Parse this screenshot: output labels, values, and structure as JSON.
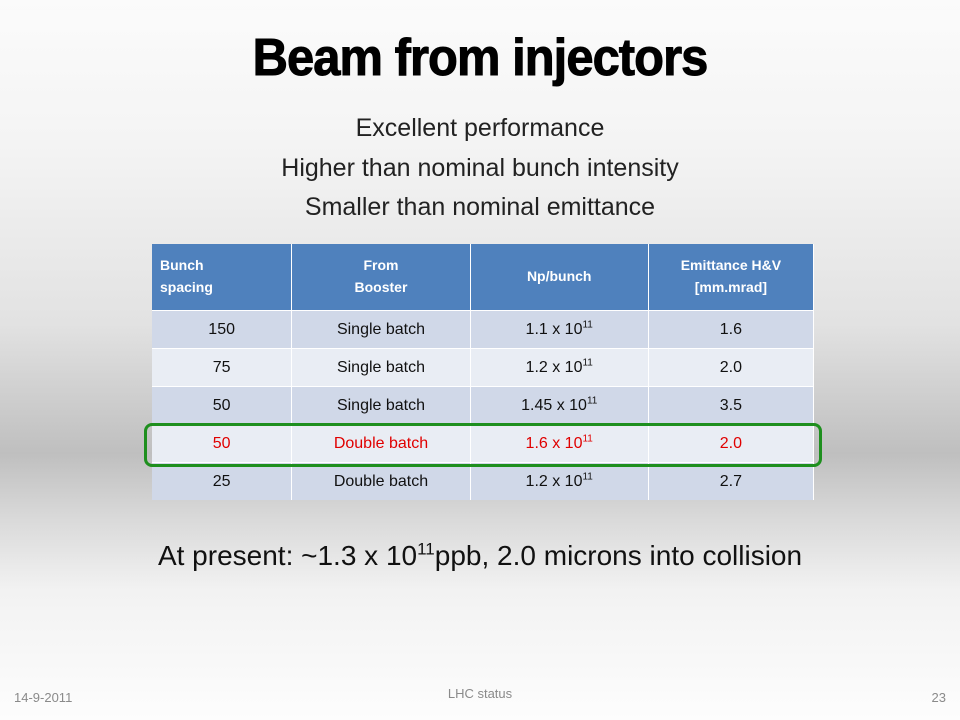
{
  "title": "Beam from injectors",
  "subtitles": [
    "Excellent performance",
    "Higher than nominal bunch intensity",
    "Smaller than nominal emittance"
  ],
  "table": {
    "headers": [
      {
        "line1": "Bunch",
        "line2": "spacing"
      },
      {
        "line1": "From",
        "line2": "Booster"
      },
      {
        "line1": "Np/bunch",
        "line2": ""
      },
      {
        "line1": "Emittance H&V",
        "line2": "[mm.mrad]"
      }
    ],
    "rows": [
      {
        "spacing": "150",
        "booster": "Single batch",
        "np_base": "1.1 x 10",
        "np_exp": "11",
        "emittance": "1.6",
        "highlight": false
      },
      {
        "spacing": "75",
        "booster": "Single batch",
        "np_base": "1.2 x 10",
        "np_exp": "11",
        "emittance": "2.0",
        "highlight": false
      },
      {
        "spacing": "50",
        "booster": "Single batch",
        "np_base": "1.45 x 10",
        "np_exp": "11",
        "emittance": "3.5",
        "highlight": false
      },
      {
        "spacing": "50",
        "booster": "Double batch",
        "np_base": "1.6 x 10",
        "np_exp": "11",
        "emittance": "2.0",
        "highlight": true
      },
      {
        "spacing": "25",
        "booster": "Double batch",
        "np_base": "1.2 x 10",
        "np_exp": "11",
        "emittance": "2.7",
        "highlight": false
      }
    ]
  },
  "summary": {
    "prefix": "At present: ~1.3 x 10",
    "exponent": "11",
    "suffix": "ppb, 2.0 microns into collision"
  },
  "footer": {
    "date": "14-9-2011",
    "center": "LHC status",
    "page": "23"
  },
  "colors": {
    "header_blue": "#4f81bd",
    "row_odd": "#d0d8e8",
    "row_even": "#e9edf4",
    "highlight_text": "#e00000",
    "highlight_box": "#1e8f1e"
  }
}
